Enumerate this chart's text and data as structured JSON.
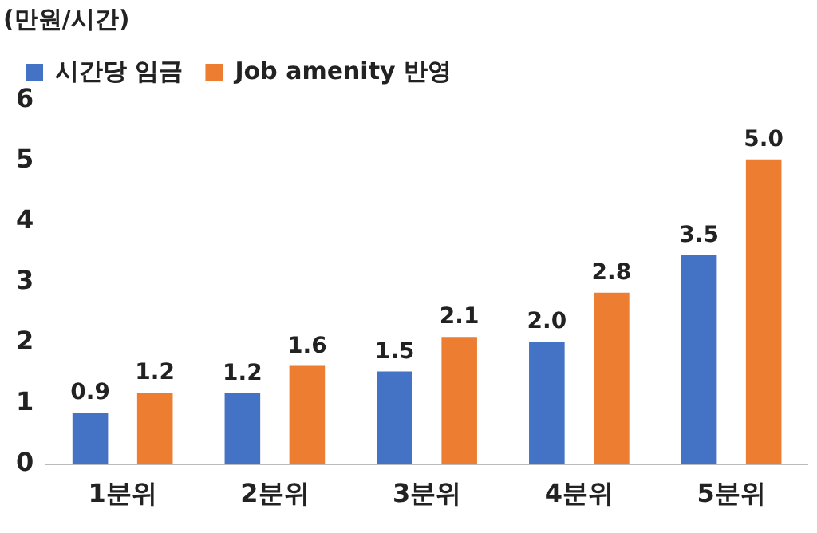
{
  "chart_data": {
    "type": "bar",
    "ylabel": "(만원/시간)",
    "categories": [
      "1분위",
      "2분위",
      "3분위",
      "4분위",
      "5분위"
    ],
    "series": [
      {
        "name": "시간당 임금",
        "color": "#4472c4",
        "values": [
          0.85,
          1.17,
          1.53,
          2.02,
          3.45
        ],
        "value_labels": [
          "0.9",
          "1.2",
          "1.5",
          "2.0",
          "3.5"
        ]
      },
      {
        "name": "Job amenity 반영",
        "color": "#ed7d31",
        "values": [
          1.18,
          1.62,
          2.1,
          2.83,
          5.03
        ],
        "value_labels": [
          "1.2",
          "1.6",
          "2.1",
          "2.8",
          "5.0"
        ]
      }
    ],
    "ylim": [
      0,
      6
    ],
    "yticks": [
      0,
      1,
      2,
      3,
      4,
      5,
      6
    ],
    "grid": false,
    "legend": "top left"
  }
}
